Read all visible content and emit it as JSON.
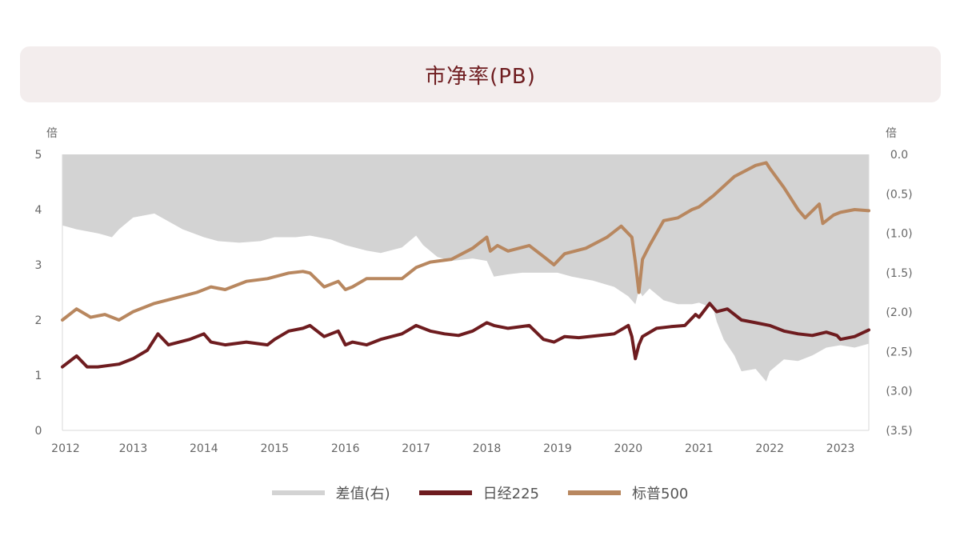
{
  "title": "市净率(PB)",
  "chart_data": {
    "type": "line",
    "title": "市净率(PB)",
    "left_axis": {
      "unit": "倍",
      "min": 0,
      "max": 5,
      "ticks": [
        "0",
        "1",
        "2",
        "3",
        "4",
        "5"
      ]
    },
    "right_axis": {
      "unit": "倍",
      "min": -3.5,
      "max": 0,
      "ticks": [
        "0.0",
        "(0.5)",
        "(1.0)",
        "(1.5)",
        "(2.0)",
        "(2.5)",
        "(3.0)",
        "(3.5)"
      ]
    },
    "x_axis": {
      "min": 2012,
      "max": 2023.4,
      "ticks": [
        "2012",
        "2013",
        "2014",
        "2015",
        "2016",
        "2017",
        "2018",
        "2019",
        "2020",
        "2021",
        "2022",
        "2023"
      ]
    },
    "series": [
      {
        "name": "差值(右)",
        "axis": "right",
        "style": "area",
        "color": "#d3d3d3",
        "x": [
          2012.0,
          2012.2,
          2012.5,
          2012.7,
          2012.8,
          2013.0,
          2013.3,
          2013.5,
          2013.7,
          2014.0,
          2014.2,
          2014.5,
          2014.8,
          2015.0,
          2015.3,
          2015.5,
          2015.8,
          2016.0,
          2016.3,
          2016.5,
          2016.8,
          2017.0,
          2017.1,
          2017.3,
          2017.5,
          2017.8,
          2018.0,
          2018.1,
          2018.3,
          2018.5,
          2018.8,
          2019.0,
          2019.2,
          2019.5,
          2019.8,
          2020.0,
          2020.1,
          2020.15,
          2020.2,
          2020.3,
          2020.5,
          2020.7,
          2020.9,
          2021.0,
          2021.2,
          2021.25,
          2021.35,
          2021.5,
          2021.6,
          2021.8,
          2021.95,
          2022.0,
          2022.2,
          2022.4,
          2022.6,
          2022.8,
          2023.0,
          2023.2,
          2023.4
        ],
        "values": [
          -0.9,
          -0.95,
          -1.0,
          -1.05,
          -0.95,
          -0.8,
          -0.75,
          -0.85,
          -0.95,
          -1.05,
          -1.1,
          -1.12,
          -1.1,
          -1.05,
          -1.05,
          -1.03,
          -1.08,
          -1.15,
          -1.22,
          -1.25,
          -1.18,
          -1.03,
          -1.15,
          -1.3,
          -1.35,
          -1.32,
          -1.35,
          -1.55,
          -1.52,
          -1.5,
          -1.5,
          -1.5,
          -1.55,
          -1.6,
          -1.68,
          -1.8,
          -1.9,
          -1.72,
          -1.8,
          -1.7,
          -1.85,
          -1.9,
          -1.9,
          -1.88,
          -1.95,
          -2.12,
          -2.35,
          -2.55,
          -2.75,
          -2.72,
          -2.88,
          -2.75,
          -2.6,
          -2.62,
          -2.55,
          -2.45,
          -2.42,
          -2.45,
          -2.4
        ]
      },
      {
        "name": "日经225",
        "axis": "left",
        "style": "line",
        "color": "#6e1c1f",
        "x": [
          2012.0,
          2012.2,
          2012.35,
          2012.5,
          2012.8,
          2013.0,
          2013.2,
          2013.35,
          2013.5,
          2013.8,
          2014.0,
          2014.1,
          2014.3,
          2014.6,
          2014.9,
          2015.0,
          2015.2,
          2015.4,
          2015.5,
          2015.7,
          2015.9,
          2016.0,
          2016.1,
          2016.3,
          2016.5,
          2016.8,
          2017.0,
          2017.2,
          2017.4,
          2017.6,
          2017.8,
          2018.0,
          2018.1,
          2018.3,
          2018.6,
          2018.8,
          2018.95,
          2019.1,
          2019.3,
          2019.6,
          2019.8,
          2020.0,
          2020.05,
          2020.1,
          2020.15,
          2020.2,
          2020.4,
          2020.6,
          2020.8,
          2020.95,
          2021.0,
          2021.15,
          2021.25,
          2021.4,
          2021.6,
          2021.8,
          2022.0,
          2022.2,
          2022.4,
          2022.6,
          2022.8,
          2022.95,
          2023.0,
          2023.2,
          2023.4
        ],
        "values": [
          1.15,
          1.35,
          1.15,
          1.15,
          1.2,
          1.3,
          1.45,
          1.75,
          1.55,
          1.65,
          1.75,
          1.6,
          1.55,
          1.6,
          1.55,
          1.65,
          1.8,
          1.85,
          1.9,
          1.7,
          1.8,
          1.55,
          1.6,
          1.55,
          1.65,
          1.75,
          1.9,
          1.8,
          1.75,
          1.72,
          1.8,
          1.95,
          1.9,
          1.85,
          1.9,
          1.65,
          1.6,
          1.7,
          1.68,
          1.72,
          1.75,
          1.9,
          1.7,
          1.3,
          1.55,
          1.7,
          1.85,
          1.88,
          1.9,
          2.1,
          2.05,
          2.3,
          2.15,
          2.2,
          2.0,
          1.95,
          1.9,
          1.8,
          1.75,
          1.72,
          1.78,
          1.72,
          1.65,
          1.7,
          1.82
        ]
      },
      {
        "name": "标普500",
        "axis": "left",
        "style": "line",
        "color": "#b8875f",
        "x": [
          2012.0,
          2012.2,
          2012.4,
          2012.6,
          2012.8,
          2013.0,
          2013.3,
          2013.6,
          2013.9,
          2014.1,
          2014.3,
          2014.6,
          2014.9,
          2015.2,
          2015.4,
          2015.5,
          2015.7,
          2015.9,
          2016.0,
          2016.1,
          2016.3,
          2016.5,
          2016.8,
          2017.0,
          2017.2,
          2017.5,
          2017.8,
          2018.0,
          2018.05,
          2018.15,
          2018.3,
          2018.6,
          2018.8,
          2018.95,
          2019.1,
          2019.4,
          2019.7,
          2019.9,
          2020.05,
          2020.1,
          2020.15,
          2020.2,
          2020.3,
          2020.5,
          2020.7,
          2020.9,
          2021.0,
          2021.2,
          2021.5,
          2021.8,
          2021.95,
          2022.0,
          2022.2,
          2022.4,
          2022.5,
          2022.7,
          2022.75,
          2022.9,
          2023.0,
          2023.2,
          2023.4
        ],
        "values": [
          2.0,
          2.2,
          2.05,
          2.1,
          2.0,
          2.15,
          2.3,
          2.4,
          2.5,
          2.6,
          2.55,
          2.7,
          2.75,
          2.85,
          2.88,
          2.85,
          2.6,
          2.7,
          2.55,
          2.6,
          2.75,
          2.75,
          2.75,
          2.95,
          3.05,
          3.1,
          3.3,
          3.5,
          3.25,
          3.35,
          3.25,
          3.35,
          3.15,
          3.0,
          3.2,
          3.3,
          3.5,
          3.7,
          3.5,
          3.05,
          2.5,
          3.1,
          3.35,
          3.8,
          3.85,
          4.0,
          4.05,
          4.25,
          4.6,
          4.8,
          4.85,
          4.75,
          4.4,
          4.0,
          3.85,
          4.1,
          3.75,
          3.9,
          3.95,
          4.0,
          3.98
        ]
      }
    ],
    "legend": [
      "差值(右)",
      "日经225",
      "标普500"
    ],
    "legend_position": "bottom-center"
  }
}
